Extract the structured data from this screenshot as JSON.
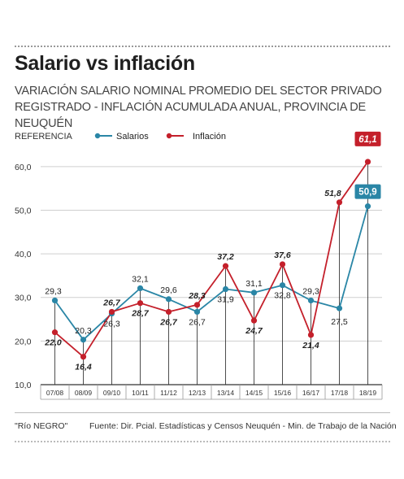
{
  "header": {
    "title": "Salario vs inflación",
    "subtitle": "VARIACIÓN SALARIO NOMINAL PROMEDIO DEL SECTOR PRIVADO REGISTRADO - INFLACIÓN ACUMULADA ANUAL, PROVINCIA DE NEUQUÉN"
  },
  "legend": {
    "label": "REFERENCIA",
    "placement": "top-left"
  },
  "footer": {
    "credit": "\"Río NEGRO\"",
    "source": "Fuente: Dir. Pcial. Estadísticas y Censos Neuquén - Min. de Trabajo de la Nación"
  },
  "colors": {
    "salarios": "#2a86a6",
    "inflacion": "#c4202b",
    "axis": "#333333",
    "grid": "#cfcfcf"
  },
  "chart_data": {
    "type": "line",
    "categories": [
      "07/08",
      "08/09",
      "09/10",
      "10/11",
      "11/12",
      "12/13",
      "13/14",
      "14/15",
      "15/16",
      "16/17",
      "17/18",
      "18/19"
    ],
    "ylim": [
      10,
      65
    ],
    "yticks": [
      "10,0",
      "20,0",
      "30,0",
      "40,0",
      "50,0",
      "60,0"
    ],
    "ytick_values": [
      10,
      20,
      30,
      40,
      50,
      60
    ],
    "grid": true,
    "series": [
      {
        "name": "Salarios",
        "values": [
          29.3,
          20.3,
          26.3,
          32.1,
          29.6,
          26.7,
          31.9,
          31.1,
          32.8,
          29.3,
          27.5,
          50.9
        ],
        "labels": [
          "29,3",
          "20,3",
          "26,3",
          "32,1",
          "29,6",
          "26,7",
          "31,9",
          "31,1",
          "32,8",
          "29,3",
          "27,5",
          "50,9"
        ]
      },
      {
        "name": "Inflación",
        "values": [
          22.0,
          16.4,
          26.7,
          28.7,
          26.7,
          28.3,
          37.2,
          24.7,
          37.6,
          21.4,
          51.8,
          61.1
        ],
        "labels": [
          "22,0",
          "16,4",
          "26,7",
          "28,7",
          "26,7",
          "28,3",
          "37,2",
          "24,7",
          "37,6",
          "21,4",
          "51,8",
          "61,1"
        ]
      }
    ]
  }
}
